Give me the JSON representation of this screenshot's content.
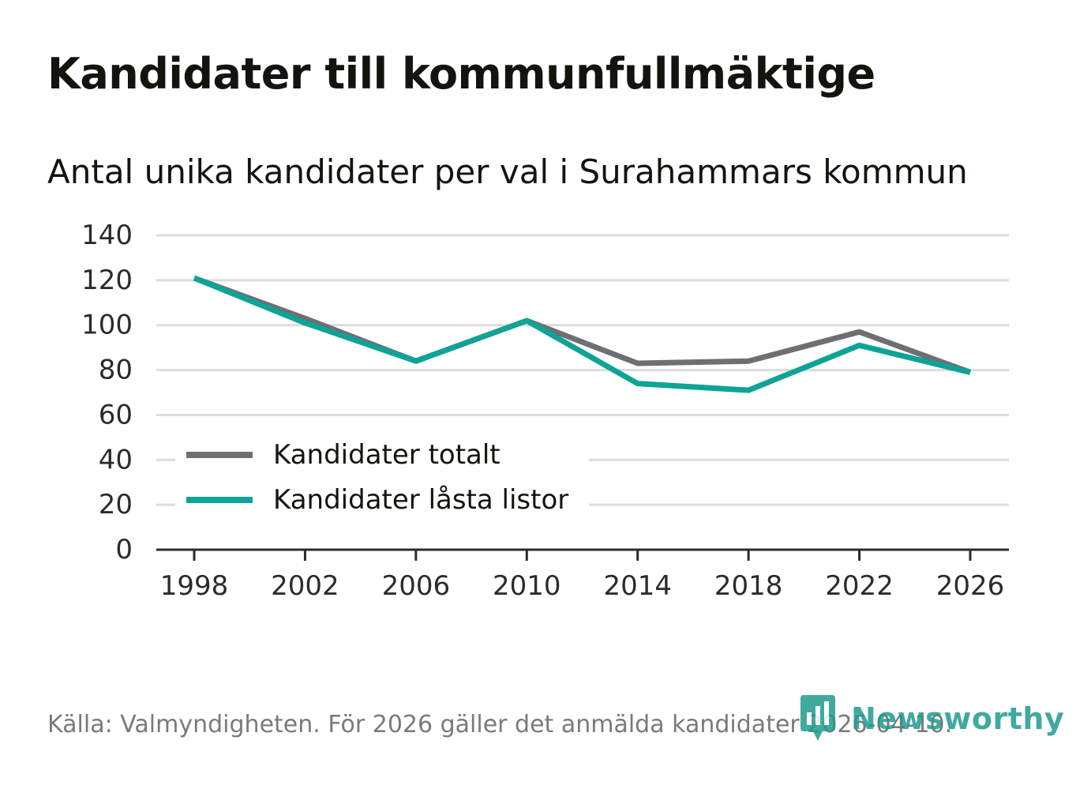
{
  "title": "Kandidater till kommunfullmäktige",
  "subtitle": "Antal unika kandidater per val i Surahammars kommun",
  "source": "Källa: Valmyndigheten. För 2026 gäller det anmälda kandidater 2026-04-10.",
  "brand": "Newsworthy",
  "colors": {
    "series_total": "#6f6e73",
    "series_locked": "#0fa397",
    "grid": "#dcdcdc",
    "axis": "#2b2b2b",
    "brand": "#1f9b90"
  },
  "chart_data": {
    "type": "line",
    "title": "Kandidater till kommunfullmäktige",
    "xlabel": "",
    "ylabel": "",
    "ylim": [
      0,
      140
    ],
    "yticks": [
      0,
      20,
      40,
      60,
      80,
      100,
      120,
      140
    ],
    "grid": true,
    "legend_position": "bottom-left",
    "x": [
      "1998",
      "2002",
      "2006",
      "2010",
      "2014",
      "2018",
      "2022",
      "2026"
    ],
    "series": [
      {
        "name": "Kandidater totalt",
        "color": "#6f6e73",
        "values": [
          121,
          103,
          84,
          102,
          83,
          84,
          97,
          79
        ]
      },
      {
        "name": "Kandidater låsta listor",
        "color": "#0fa397",
        "values": [
          121,
          101,
          84,
          102,
          74,
          71,
          91,
          79
        ]
      }
    ]
  }
}
